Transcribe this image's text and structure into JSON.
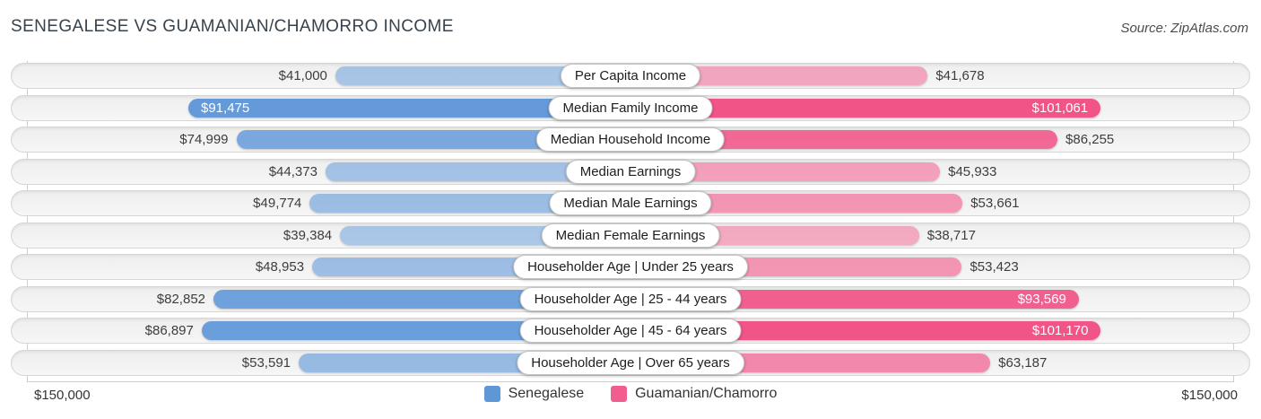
{
  "title": "SENEGALESE VS GUAMANIAN/CHAMORRO INCOME",
  "source": "Source: ZipAtlas.com",
  "axis": {
    "left_max_label": "$150,000",
    "right_max_label": "$150,000"
  },
  "legend": [
    {
      "label": "Senegalese",
      "color": "#5e96d6"
    },
    {
      "label": "Guamanian/Chamorro",
      "color": "#f25d90"
    }
  ],
  "colors": {
    "senegalese_base": "83,144,215",
    "guamanian_base": "241,81,133"
  },
  "chart_data": {
    "type": "bar",
    "orientation": "horizontal-diverging",
    "title": "SENEGALESE VS GUAMANIAN/CHAMORRO INCOME",
    "axis_max": 150000,
    "axis_max_label": "$150,000",
    "categories": [
      "Per Capita Income",
      "Median Family Income",
      "Median Household Income",
      "Median Earnings",
      "Median Male Earnings",
      "Median Female Earnings",
      "Householder Age | Under 25 years",
      "Householder Age | 25 - 44 years",
      "Householder Age | 45 - 64 years",
      "Householder Age | Over 65 years"
    ],
    "series": [
      {
        "name": "Senegalese",
        "values": [
          41000,
          91475,
          74999,
          44373,
          49774,
          39384,
          48953,
          82852,
          86897,
          53591
        ],
        "value_labels": [
          "$41,000",
          "$91,475",
          "$74,999",
          "$44,373",
          "$49,774",
          "$39,384",
          "$48,953",
          "$82,852",
          "$86,897",
          "$53,591"
        ]
      },
      {
        "name": "Guamanian/Chamorro",
        "values": [
          41678,
          101061,
          86255,
          45933,
          53661,
          38717,
          53423,
          93569,
          101170,
          63187
        ],
        "value_labels": [
          "$41,678",
          "$101,061",
          "$86,255",
          "$45,933",
          "$53,661",
          "$38,717",
          "$53,423",
          "$93,569",
          "$101,170",
          "$63,187"
        ]
      }
    ],
    "legend_position": "bottom-center",
    "grid": "vertical-end-lines"
  }
}
